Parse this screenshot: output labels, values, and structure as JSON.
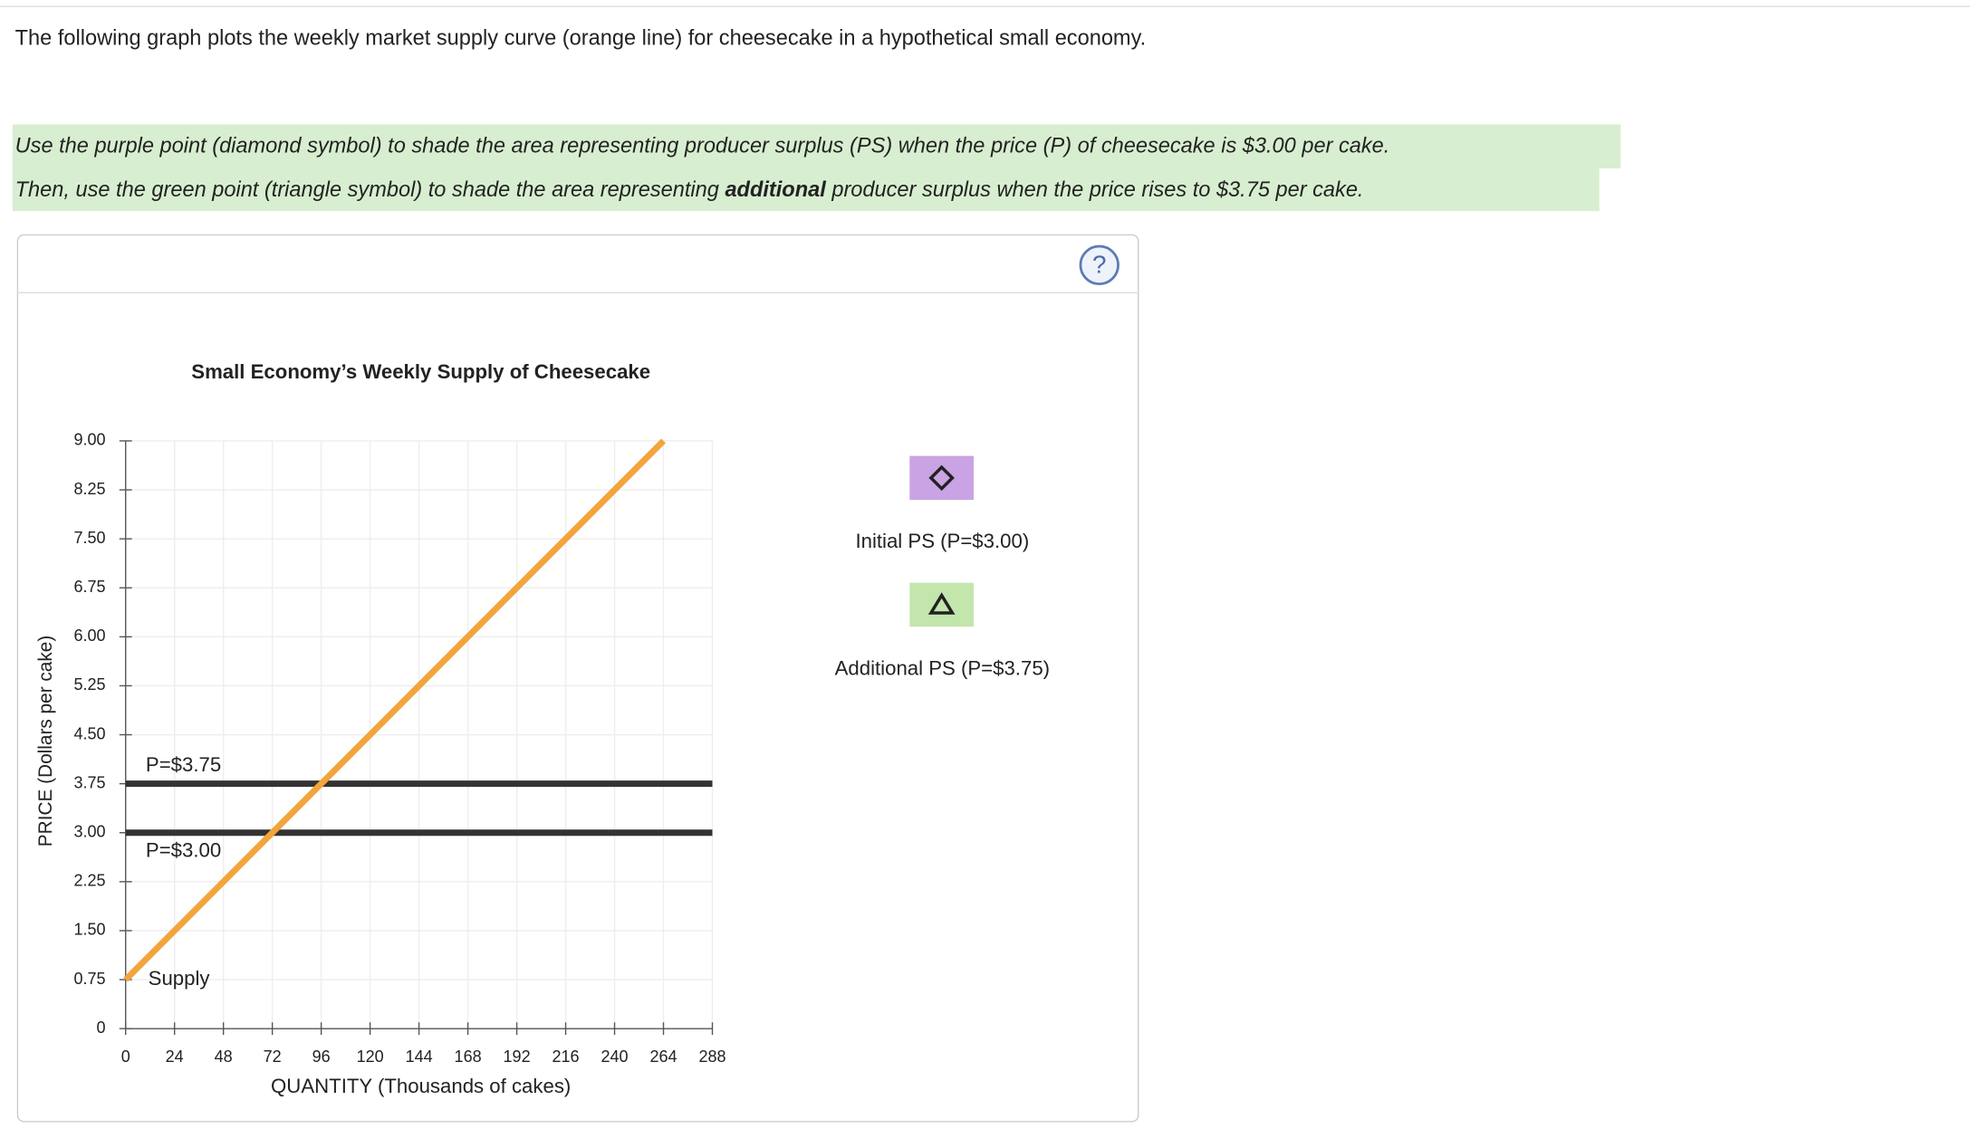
{
  "intro": "The following graph plots the weekly market supply curve (orange line) for cheesecake in a hypothetical small economy.",
  "instructions": {
    "line1": "Use the purple point (diamond symbol) to shade the area representing producer surplus (PS) when the price (P) of cheesecake is $3.00 per cake.",
    "line2_before": "Then, use the green point (triangle symbol) to shade the area representing ",
    "line2_bold": "additional",
    "line2_after": " producer surplus when the price rises to $3.75 per cake."
  },
  "help": "?",
  "tools": [
    {
      "label": "Initial PS (P=$3.00)",
      "color": "#c9a3e3"
    },
    {
      "label": "Additional PS (P=$3.75)",
      "color": "#c3e6ad"
    }
  ],
  "chart_data": {
    "type": "line",
    "title": "Small Economy’s Weekly Supply of Cheesecake",
    "x_label": "QUANTITY (Thousands of cakes)",
    "y_label": "PRICE (Dollars per cake)",
    "xlim": [
      0,
      288
    ],
    "ylim": [
      0,
      9
    ],
    "xticks": [
      0,
      24,
      48,
      72,
      96,
      120,
      144,
      168,
      192,
      216,
      240,
      264,
      288
    ],
    "yticks": [
      0,
      0.75,
      {
        "value": 1.5,
        "label": "1.50"
      },
      2.25,
      {
        "value": 3,
        "label": "3.00"
      },
      3.75,
      {
        "value": 4.5,
        "label": "4.50"
      },
      5.25,
      {
        "value": 6,
        "label": "6.00"
      },
      6.75,
      {
        "value": 7.5,
        "label": "7.50"
      },
      8.25,
      {
        "value": 9,
        "label": "9.00"
      }
    ],
    "grid": true,
    "series": [
      {
        "name": "Supply",
        "color": "#f3a43b",
        "x": [
          0,
          264
        ],
        "values": [
          0.75,
          9
        ]
      },
      {
        "name": "P=$3.75",
        "color": "#333333",
        "x": [
          0,
          288
        ],
        "values": [
          3.75,
          3.75
        ]
      },
      {
        "name": "P=$3.00",
        "color": "#333333",
        "x": [
          0,
          288
        ],
        "values": [
          3,
          3
        ]
      }
    ]
  }
}
